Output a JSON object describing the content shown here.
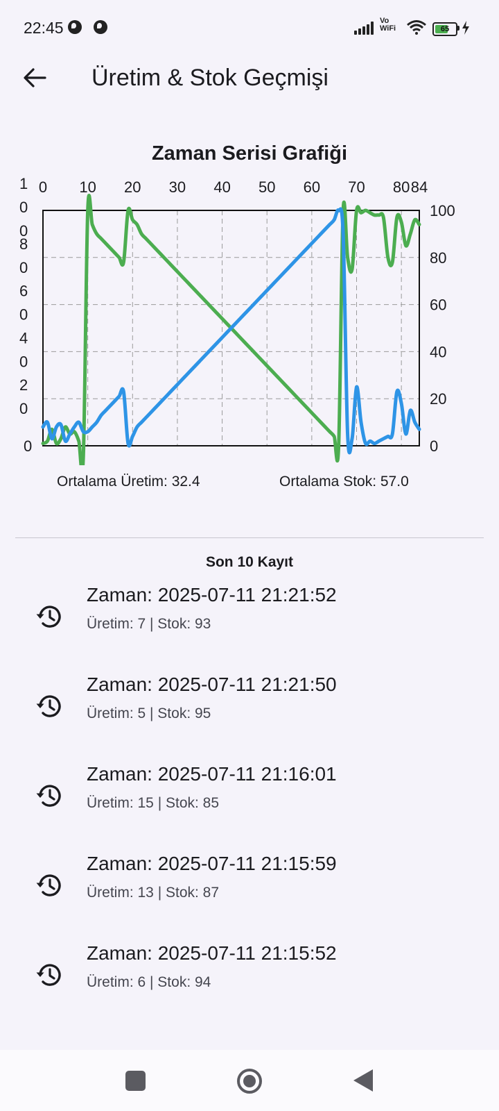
{
  "status_bar": {
    "time": "22:45",
    "network": "Vo WiFi",
    "battery": "65",
    "icons": [
      "notification-icon",
      "notification-icon",
      "signal-icon",
      "vowifi-icon",
      "wifi-icon",
      "battery-icon",
      "charging-icon"
    ]
  },
  "app_bar": {
    "title": "Üretim & Stok Geçmişi",
    "back_icon": "arrow-back-icon"
  },
  "colors": {
    "uretim": "#2e94e6",
    "stok": "#4cad50",
    "background": "#f5f3fa"
  },
  "chart_data": {
    "type": "line",
    "title": "Zaman Serisi Grafiği",
    "x_ticks": [
      "0",
      "10",
      "20",
      "30",
      "40",
      "50",
      "60",
      "70",
      "80",
      "84"
    ],
    "xlim": [
      0,
      84
    ],
    "left_axis_ticks": [
      "1\n0\n0",
      "8\n0",
      "6\n0",
      "4\n0",
      "2\n0",
      "0"
    ],
    "right_axis_ticks": [
      "100",
      "80",
      "60",
      "40",
      "20",
      "0"
    ],
    "ylim": [
      0,
      100
    ],
    "grid": true,
    "series": [
      {
        "name": "Üretim",
        "color": "#2e94e6",
        "x": [
          0,
          1,
          2,
          3,
          4,
          5,
          6,
          7,
          8,
          9,
          10,
          11,
          12,
          13,
          14,
          15,
          16,
          17,
          18,
          19,
          20,
          21,
          22,
          23,
          24,
          25,
          26,
          27,
          28,
          29,
          30,
          31,
          32,
          33,
          34,
          35,
          36,
          37,
          38,
          39,
          40,
          41,
          42,
          43,
          44,
          45,
          46,
          47,
          48,
          49,
          50,
          51,
          52,
          53,
          54,
          55,
          56,
          57,
          58,
          59,
          60,
          61,
          62,
          63,
          64,
          65,
          66,
          67,
          68,
          69,
          70,
          71,
          72,
          73,
          74,
          75,
          76,
          77,
          78,
          79,
          80,
          81,
          82,
          83,
          84
        ],
        "values": [
          8,
          10,
          3,
          8,
          9,
          2,
          5,
          8,
          10,
          6,
          6,
          8,
          10,
          13,
          15,
          17,
          19,
          21,
          23,
          1,
          4,
          8,
          10,
          12,
          14,
          16,
          18,
          20,
          22,
          24,
          26,
          28,
          30,
          32,
          34,
          36,
          38,
          40,
          42,
          44,
          46,
          48,
          50,
          52,
          54,
          56,
          58,
          60,
          62,
          64,
          66,
          68,
          70,
          72,
          74,
          76,
          78,
          80,
          82,
          84,
          86,
          88,
          90,
          92,
          94,
          96,
          100,
          90,
          5,
          3,
          25,
          10,
          1,
          2,
          1,
          2,
          3,
          4,
          5,
          23,
          18,
          5,
          15,
          10,
          7
        ]
      },
      {
        "name": "Stok",
        "color": "#4cad50",
        "x": [
          0,
          1,
          2,
          3,
          4,
          5,
          6,
          7,
          8,
          9,
          10,
          11,
          12,
          13,
          14,
          15,
          16,
          17,
          18,
          19,
          20,
          21,
          22,
          23,
          24,
          25,
          26,
          27,
          28,
          29,
          30,
          31,
          32,
          33,
          34,
          35,
          36,
          37,
          38,
          39,
          40,
          41,
          42,
          43,
          44,
          45,
          46,
          47,
          48,
          49,
          50,
          51,
          52,
          53,
          54,
          55,
          56,
          57,
          58,
          59,
          60,
          61,
          62,
          63,
          64,
          65,
          66,
          67,
          68,
          69,
          70,
          71,
          72,
          73,
          74,
          75,
          76,
          77,
          78,
          79,
          80,
          81,
          82,
          83,
          84
        ],
        "values": [
          1,
          2,
          7,
          1,
          3,
          8,
          5,
          6,
          2,
          -5,
          100,
          94,
          90,
          88,
          86,
          84,
          82,
          80,
          78,
          100,
          96,
          94,
          90,
          88,
          86,
          84,
          82,
          80,
          78,
          76,
          74,
          72,
          70,
          68,
          66,
          64,
          62,
          60,
          58,
          56,
          54,
          52,
          50,
          48,
          46,
          44,
          42,
          40,
          38,
          36,
          34,
          32,
          30,
          28,
          26,
          24,
          22,
          20,
          18,
          16,
          14,
          12,
          10,
          8,
          6,
          4,
          0,
          100,
          80,
          75,
          100,
          99,
          100,
          99,
          98,
          98,
          97,
          80,
          78,
          97,
          95,
          85,
          90,
          96,
          94
        ]
      }
    ]
  },
  "summary": {
    "avg_uretim": "Ortalama Üretim: 32.4",
    "avg_stok": "Ortalama Stok: 57.0"
  },
  "records_title": "Son 10 Kayıt",
  "records": [
    {
      "zaman": "Zaman: 2025-07-11 21:21:52",
      "detail": "Üretim: 7 | Stok: 93",
      "icon": "history-icon"
    },
    {
      "zaman": "Zaman: 2025-07-11 21:21:50",
      "detail": "Üretim: 5 | Stok: 95",
      "icon": "history-icon"
    },
    {
      "zaman": "Zaman: 2025-07-11 21:16:01",
      "detail": "Üretim: 15 | Stok: 85",
      "icon": "history-icon"
    },
    {
      "zaman": "Zaman: 2025-07-11 21:15:59",
      "detail": "Üretim: 13 | Stok: 87",
      "icon": "history-icon"
    },
    {
      "zaman": "Zaman: 2025-07-11 21:15:52",
      "detail": "Üretim: 6 | Stok: 94",
      "icon": "history-icon"
    }
  ],
  "nav_bar": {
    "icons": [
      "recents-square-icon",
      "home-circle-icon",
      "back-triangle-icon"
    ]
  }
}
